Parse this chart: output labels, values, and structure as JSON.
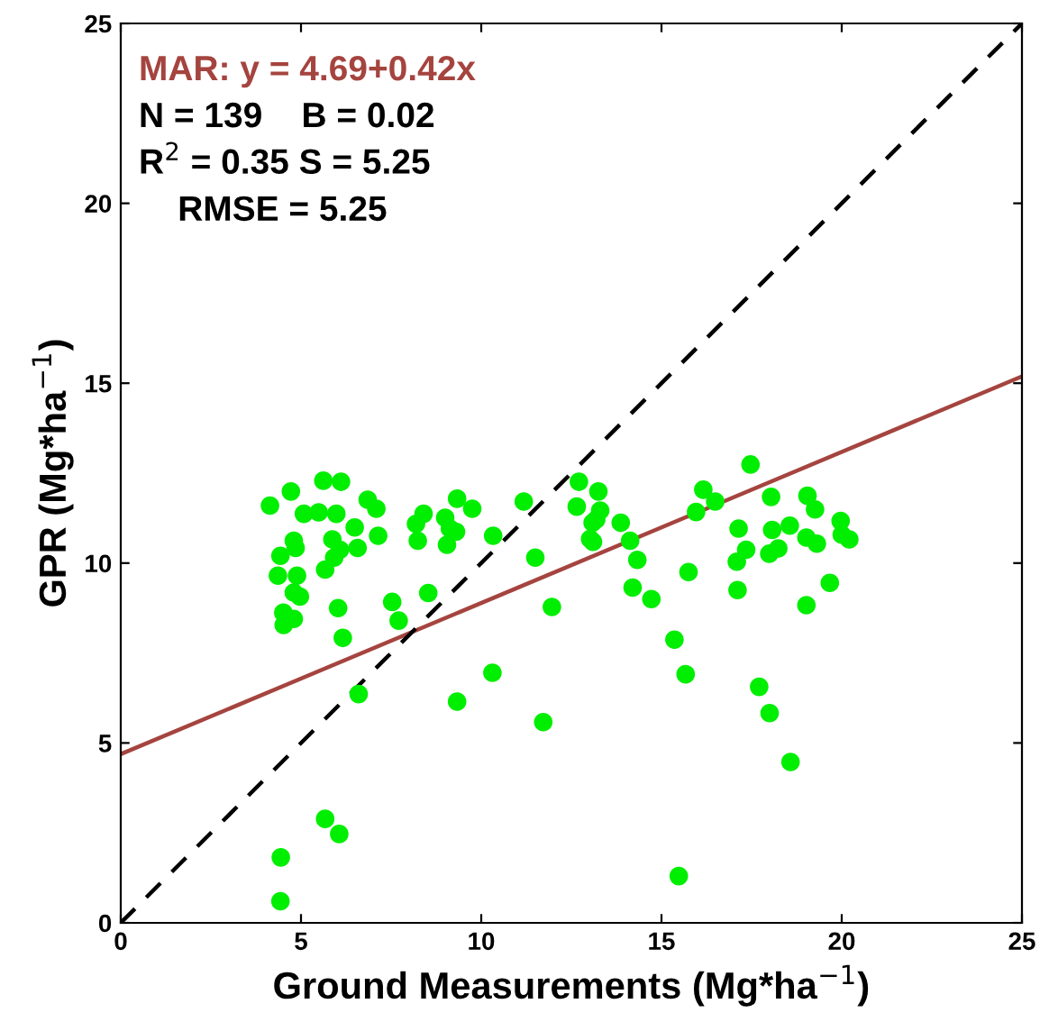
{
  "chart_data": {
    "type": "scatter",
    "xlabel": "Ground Measurements (Mg*ha$^{−1}$)",
    "ylabel": "GPR (Mg*ha$^{−1}$)",
    "xlim": [
      0,
      25
    ],
    "ylim": [
      0,
      25
    ],
    "xticks": [
      0,
      5,
      10,
      15,
      20,
      25
    ],
    "yticks": [
      0,
      5,
      10,
      15,
      20,
      25
    ],
    "grid": false,
    "annotations": [
      "MAR: y = 4.69+0.42x",
      "N = 139    B = 0.02",
      "R$^{2}$ = 0.35 S = 5.25",
      "    RMSE = 5.25"
    ],
    "series": [
      {
        "marker": "circle",
        "color": "#00ee00",
        "x": [
          4.14,
          4.72,
          5.62,
          6.11,
          5.08,
          5.49,
          5.98,
          6.85,
          7.09,
          6.49,
          7.14,
          4.8,
          4.85,
          4.43,
          5.87,
          6.08,
          5.92,
          6.57,
          5.67,
          4.36,
          4.89,
          4.8,
          4.97,
          4.51,
          4.8,
          4.52,
          6.03,
          6.16,
          7.53,
          7.71,
          8.53,
          6.6,
          9.33,
          5.67,
          6.06,
          4.44,
          4.43,
          8.19,
          8.4,
          8.24,
          9.0,
          9.13,
          9.05,
          9.33,
          9.75,
          9.3,
          10.33,
          11.18,
          11.5,
          11.96,
          12.71,
          13.25,
          12.65,
          13.3,
          13.19,
          13.09,
          13.02,
          13.1,
          13.87,
          14.13,
          14.33,
          14.2,
          14.72,
          15.75,
          16.16,
          16.49,
          15.96,
          17.47,
          18.04,
          17.14,
          18.07,
          18.56,
          17.35,
          17.09,
          17.99,
          18.24,
          17.11,
          10.31,
          11.72,
          15.36,
          15.67,
          17.71,
          18.0,
          18.58,
          15.48,
          19.05,
          19.26,
          19.97,
          20.0,
          20.21,
          19.02,
          19.31,
          19.67,
          19.02
        ],
        "values": [
          11.6,
          11.99,
          12.29,
          12.26,
          11.37,
          11.41,
          11.37,
          11.76,
          11.51,
          10.99,
          10.76,
          10.62,
          10.42,
          10.2,
          10.66,
          10.37,
          10.15,
          10.42,
          9.82,
          9.65,
          9.65,
          9.18,
          9.07,
          8.62,
          8.45,
          8.28,
          8.75,
          7.92,
          8.92,
          8.4,
          9.17,
          6.36,
          6.15,
          2.89,
          2.47,
          1.82,
          0.6,
          11.09,
          11.37,
          10.62,
          11.26,
          10.96,
          10.51,
          11.79,
          11.51,
          10.87,
          10.76,
          11.71,
          10.15,
          8.78,
          12.26,
          11.99,
          11.57,
          11.46,
          11.21,
          11.12,
          10.67,
          10.59,
          11.12,
          10.62,
          10.09,
          9.32,
          9.0,
          9.75,
          12.04,
          11.71,
          11.42,
          12.74,
          11.84,
          10.96,
          10.92,
          11.04,
          10.37,
          10.04,
          10.26,
          10.41,
          9.25,
          6.95,
          5.58,
          7.87,
          6.91,
          6.56,
          5.83,
          4.47,
          1.3,
          11.87,
          11.49,
          11.17,
          10.79,
          10.66,
          10.71,
          10.54,
          9.45,
          8.83
        ]
      },
      {
        "type": "line",
        "marker": "none",
        "color": "#a5443f",
        "line_style": "solid",
        "x": [
          0,
          25
        ],
        "values": [
          4.69,
          15.19
        ]
      },
      {
        "type": "line",
        "marker": "none",
        "color": "#000000",
        "line_style": "dashed",
        "x": [
          0,
          25
        ],
        "values": [
          0,
          25
        ]
      }
    ]
  }
}
